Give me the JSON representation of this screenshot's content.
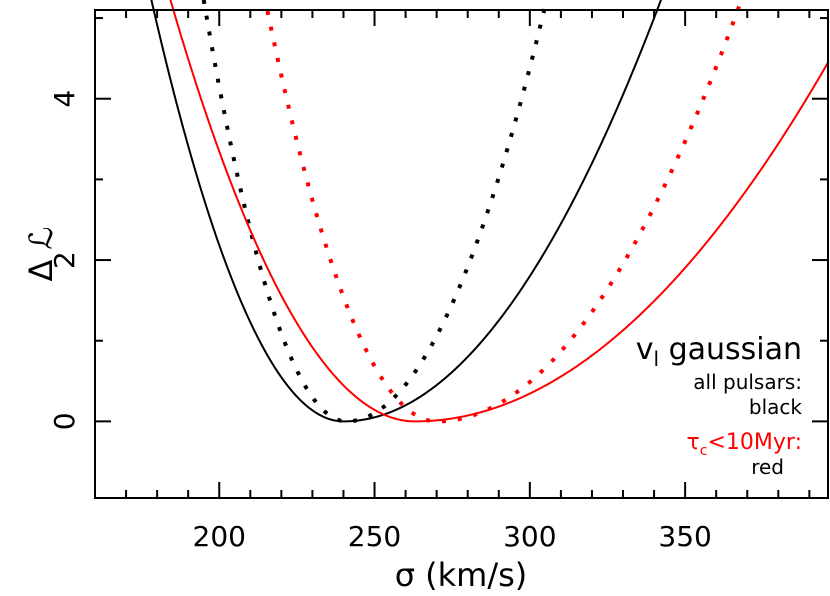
{
  "chart_data": {
    "type": "line",
    "xlabel": "σ (km/s)",
    "ylabel": "Δ ℒ",
    "xlim": [
      160,
      396
    ],
    "ylim": [
      -0.95,
      5.1
    ],
    "x_ticks": [
      "200",
      "250",
      "300",
      "350"
    ],
    "y_ticks": [
      "0",
      "2",
      "4"
    ],
    "series": [
      {
        "style": "solid",
        "color": "#000000",
        "min_x": 240,
        "min_y": 0,
        "x_at_y5_left": 179.5,
        "x_at_y5_right": 340
      },
      {
        "style": "dotted",
        "color": "#000000",
        "min_x": 241,
        "min_y": 0,
        "x_at_y5_left": 196,
        "x_at_y5_right": 304
      },
      {
        "style": "solid",
        "color": "#ff0000",
        "min_x": 263,
        "min_y": 0,
        "x_at_y5_left": 186,
        "x_at_y5_right": 404
      },
      {
        "style": "dotted",
        "color": "#ff0000",
        "min_x": 270,
        "min_y": 0,
        "x_at_y5_left": 216,
        "x_at_y5_right": 366
      }
    ],
    "annotations": {
      "heading_v": "v",
      "heading_sub": "l",
      "heading_rest": " gaussian",
      "line1": "all pulsars:",
      "line2": "black",
      "red_tau": "τ",
      "red_sub": "c",
      "red_rest": "<10Myr:",
      "red_line2": "red"
    },
    "colors": {
      "black": "#000000",
      "red": "#ff0000"
    },
    "grid": false
  }
}
